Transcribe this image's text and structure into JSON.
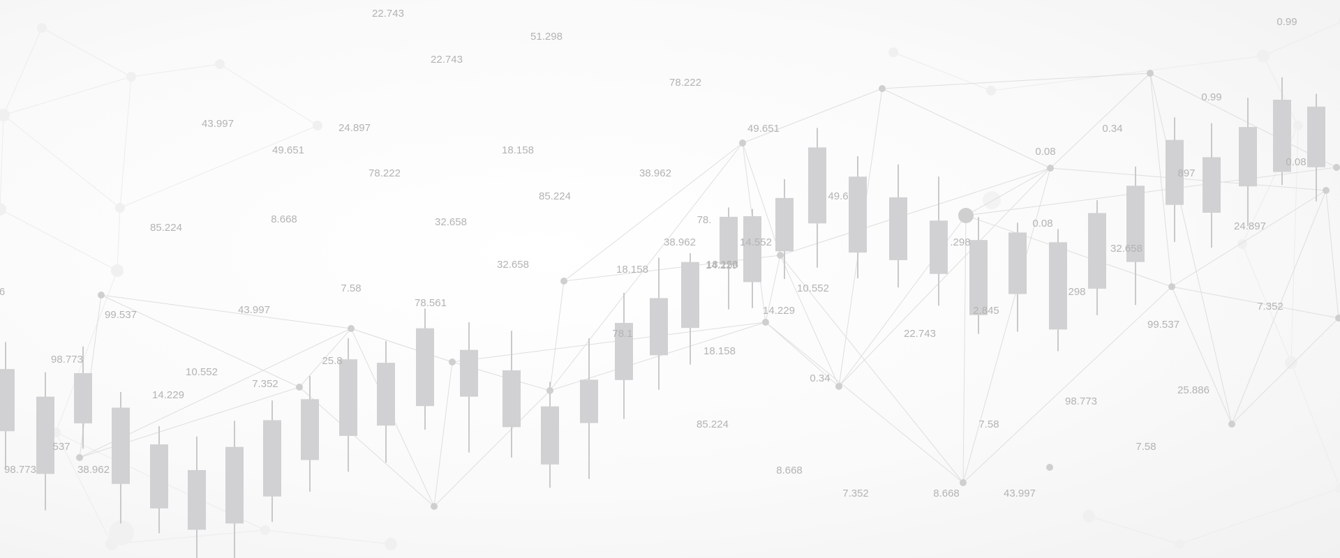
{
  "chart_data": {
    "type": "candlestick",
    "title": "",
    "xlabel": "",
    "ylabel": "",
    "grid": false,
    "colors": {
      "candle": "#d1d1d3",
      "wick": "#c9c9cb",
      "node": "#cfcfcf",
      "line": "#dedede",
      "text": "#b3b3b3"
    },
    "candles": [
      {
        "open": 40.4,
        "close": 60.2,
        "high": 68.8,
        "low": 28.2
      },
      {
        "open": 26.8,
        "close": 51.4,
        "high": 59.2,
        "low": 15.2
      },
      {
        "open": 42.9,
        "close": 58.9,
        "high": 67.4,
        "low": 34.8
      },
      {
        "open": 23.6,
        "close": 47.9,
        "high": 52.9,
        "low": 11.0
      },
      {
        "open": 15.8,
        "close": 36.2,
        "high": 42.0,
        "low": 7.9
      },
      {
        "open": 9.0,
        "close": 28.0,
        "high": 38.7,
        "low": 0.0
      },
      {
        "open": 11.0,
        "close": 35.4,
        "high": 43.7,
        "low": 0.0
      },
      {
        "open": 19.6,
        "close": 43.9,
        "high": 50.2,
        "low": 11.5
      },
      {
        "open": 31.2,
        "close": 50.6,
        "high": 58.0,
        "low": 21.1
      },
      {
        "open": 38.9,
        "close": 63.3,
        "high": 70.0,
        "low": 27.5
      },
      {
        "open": 42.2,
        "close": 62.2,
        "high": 69.1,
        "low": 30.4
      },
      {
        "open": 48.4,
        "close": 73.2,
        "high": 79.5,
        "low": 40.9
      },
      {
        "open": 51.4,
        "close": 66.3,
        "high": 75.1,
        "low": 33.6
      },
      {
        "open": 41.7,
        "close": 59.8,
        "high": 72.4,
        "low": 32.0
      },
      {
        "open": 29.8,
        "close": 48.3,
        "high": 56.1,
        "low": 22.4
      },
      {
        "open": 43.0,
        "close": 56.8,
        "high": 70.0,
        "low": 25.2
      },
      {
        "open": 56.7,
        "close": 74.9,
        "high": 84.5,
        "low": 44.3
      },
      {
        "open": 64.6,
        "close": 82.8,
        "high": 95.7,
        "low": 53.6
      },
      {
        "open": 73.3,
        "close": 94.3,
        "high": 97.1,
        "low": 61.6
      },
      {
        "open": 93.5,
        "close": 108.7,
        "high": 111.7,
        "low": 79.2
      },
      {
        "open": 87.9,
        "close": 108.9,
        "high": 111.2,
        "low": 79.6
      },
      {
        "open": 97.7,
        "close": 114.7,
        "high": 120.7,
        "low": 88.9
      },
      {
        "open": 106.6,
        "close": 130.8,
        "high": 137.0,
        "low": 92.5
      },
      {
        "open": 97.3,
        "close": 121.5,
        "high": 128.0,
        "low": 89.1
      },
      {
        "open": 94.9,
        "close": 114.9,
        "high": 125.4,
        "low": 86.2
      },
      {
        "open": 90.5,
        "close": 107.5,
        "high": 121.5,
        "low": 80.4
      },
      {
        "open": 77.4,
        "close": 101.3,
        "high": 108.6,
        "low": 71.4
      },
      {
        "open": 84.1,
        "close": 103.7,
        "high": 106.8,
        "low": 72.1
      },
      {
        "open": 72.8,
        "close": 100.6,
        "high": 104.8,
        "low": 65.9
      },
      {
        "open": 85.8,
        "close": 109.9,
        "high": 114.0,
        "low": 77.4
      },
      {
        "open": 94.3,
        "close": 118.6,
        "high": 124.7,
        "low": 80.6
      },
      {
        "open": 112.5,
        "close": 133.2,
        "high": 140.4,
        "low": 100.7
      },
      {
        "open": 110.0,
        "close": 127.7,
        "high": 138.5,
        "low": 98.9
      },
      {
        "open": 118.4,
        "close": 137.3,
        "high": 146.6,
        "low": 105.7
      },
      {
        "open": 123.0,
        "close": 146.0,
        "high": 153.1,
        "low": 118.8
      },
      {
        "open": 124.5,
        "close": 143.8,
        "high": 147.9,
        "low": 113.6
      }
    ],
    "network_nodes": [
      {
        "id": "n0",
        "r": 5
      },
      {
        "id": "n1",
        "r": 5
      },
      {
        "id": "n2",
        "r": 5
      },
      {
        "id": "n3",
        "r": 5
      },
      {
        "id": "n4",
        "r": 5
      },
      {
        "id": "n5",
        "r": 5
      },
      {
        "id": "n6",
        "r": 5
      },
      {
        "id": "n7",
        "r": 5
      },
      {
        "id": "n8",
        "r": 5
      },
      {
        "id": "n9",
        "r": 5
      },
      {
        "id": "n10",
        "r": 5
      },
      {
        "id": "n11",
        "r": 5
      },
      {
        "id": "n12",
        "r": 5
      },
      {
        "id": "n13",
        "r": 5
      },
      {
        "id": "n14",
        "r": 5
      },
      {
        "id": "n15",
        "r": 5
      },
      {
        "id": "n16",
        "r": 11
      },
      {
        "id": "n17",
        "r": 5
      },
      {
        "id": "n18",
        "r": 5
      },
      {
        "id": "n19",
        "r": 5
      },
      {
        "id": "n20",
        "r": 5
      },
      {
        "id": "n21",
        "r": 5
      },
      {
        "id": "n22",
        "r": 5
      }
    ],
    "labels": [
      "22.743",
      "51.298",
      "22.743",
      "78.222",
      "43.997",
      "24.897",
      "49.651",
      "18.158",
      "85.224",
      "78.222",
      "38.962",
      "85.224",
      "8.668",
      "32.658",
      "32.658",
      "18.158",
      "7.58",
      "78.561",
      "43.997",
      "99.537",
      "98.773",
      "10.552",
      "14.229",
      "7.352",
      "25.8",
      "537",
      "98.773",
      "38.962",
      "6",
      "78.",
      "38.962",
      "18.158",
      "14.229",
      "49.651",
      "14.552",
      "49.6",
      "10.552",
      "14.229",
      "18.158",
      "0.34",
      "22.743",
      "85.224",
      "8.668",
      "7.352",
      "8.668",
      "43.997",
      "7.58",
      ".298",
      "2.845",
      "0.08",
      "0.08",
      "298",
      "0.34",
      "32.658",
      "98.773",
      "99.537",
      "0.99",
      "0.99",
      "897",
      "0.08",
      "24.897",
      "7.352",
      "25.886",
      "7.58",
      "78.1"
    ]
  }
}
